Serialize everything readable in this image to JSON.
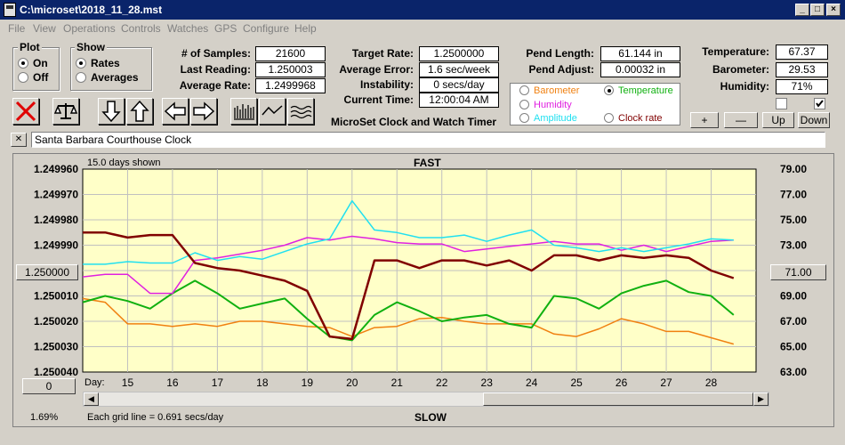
{
  "window": {
    "title": "C:\\microset\\2018_11_28.mst"
  },
  "menu": [
    "File",
    "View",
    "Operations",
    "Controls",
    "Watches",
    "GPS",
    "Configure",
    "Help"
  ],
  "plot_group": {
    "title": "Plot",
    "on": "On",
    "off": "Off",
    "selected": "On"
  },
  "show_group": {
    "title": "Show",
    "rates": "Rates",
    "averages": "Averages",
    "selected": "Rates"
  },
  "stats": {
    "samples_label": "# of Samples:",
    "samples": "21600",
    "last_label": "Last Reading:",
    "last": "1.250003",
    "avg_label": "Average Rate:",
    "avg": "1.2499968",
    "target_label": "Target Rate:",
    "target": "1.2500000",
    "err_label": "Average Error:",
    "err": "1.6 sec/week",
    "inst_label": "Instability:",
    "inst": "0 secs/day",
    "time_label": "Current Time:",
    "time": "12:00:04 AM",
    "pendlen_label": "Pend Length:",
    "pendlen": "61.144 in",
    "pendadj_label": "Pend Adjust:",
    "pendadj": "0.00032 in",
    "temp_label": "Temperature:",
    "temp": "67.37",
    "baro_label": "Barometer:",
    "baro": "29.53",
    "hum_label": "Humidity:",
    "hum": "71%"
  },
  "app_caption": "MicroSet Clock and Watch Timer",
  "legend": {
    "barometer": "Barometer",
    "temperature": "Temperature",
    "humidity": "Humidity",
    "amplitude": "Amplitude",
    "clock_rate": "Clock rate",
    "selected": "Temperature"
  },
  "adjust_buttons": {
    "plus": "+",
    "minus": "—",
    "up": "Up",
    "down": "Down"
  },
  "clock_name": "Santa Barbara Courthouse Clock",
  "close_x": "✕",
  "plot": {
    "days_shown": "15.0 days shown",
    "top_label": "FAST",
    "bottom_label": "SLOW",
    "grid_note": "Each grid line = 0.691 secs/day",
    "left_ticks": [
      "1.249960",
      "1.249970",
      "1.249980",
      "1.249990",
      "1.250000",
      "1.250010",
      "1.250020",
      "1.250030",
      "1.250040"
    ],
    "right_ticks": [
      "79.00",
      "77.00",
      "75.00",
      "73.00",
      "71.00",
      "69.00",
      "67.00",
      "65.00",
      "63.00"
    ],
    "center_left_button": "1.250000",
    "center_right_button": "71.00",
    "zero_button": "0",
    "percent": "1.69%",
    "day_label": "Day:",
    "days": [
      "15",
      "16",
      "17",
      "18",
      "19",
      "20",
      "21",
      "22",
      "23",
      "24",
      "25",
      "26",
      "27",
      "28"
    ]
  },
  "colors": {
    "plot_bg": "#ffffc8",
    "rate": "#800000",
    "temperature": "#10b010",
    "humidity": "#e020e0",
    "amplitude": "#20e0f0",
    "barometer": "#f08010"
  },
  "chart_data": {
    "type": "line",
    "x_label": "Day",
    "x": [
      14.0,
      14.5,
      15.0,
      15.5,
      16.0,
      16.5,
      17.0,
      17.5,
      18.0,
      18.5,
      19.0,
      19.5,
      20.0,
      20.5,
      21.0,
      21.5,
      22.0,
      22.5,
      23.0,
      23.5,
      24.0,
      24.5,
      25.0,
      25.5,
      26.0,
      26.5,
      27.0,
      27.5,
      28.0,
      28.5
    ],
    "left_axis": {
      "ylim": [
        1.24996,
        1.25004
      ],
      "inverted": true
    },
    "right_axis": {
      "ylim": [
        63.0,
        79.0
      ]
    },
    "series": [
      {
        "axis": "left",
        "values": [
          1.249985,
          1.249985,
          1.249987,
          1.249986,
          1.249986,
          1.249997,
          1.249999,
          1.25,
          1.250002,
          1.250004,
          1.250008,
          1.250026,
          1.250027,
          1.249996,
          1.249996,
          1.249999,
          1.249996,
          1.249996,
          1.249998,
          1.249996,
          1.25,
          1.249994,
          1.249994,
          1.249996,
          1.249994,
          1.249995,
          1.249994,
          1.249995,
          1.25,
          1.250003
        ]
      },
      {
        "axis": "right",
        "values": [
          68.5,
          69.0,
          68.6,
          68.0,
          69.2,
          70.2,
          69.2,
          68.0,
          68.4,
          68.8,
          67.2,
          65.8,
          65.5,
          67.5,
          68.5,
          67.8,
          67.0,
          67.3,
          67.5,
          66.8,
          66.5,
          69.0,
          68.8,
          68.0,
          69.2,
          69.8,
          70.2,
          69.3,
          69.0,
          67.5
        ]
      },
      {
        "axis": "right",
        "values": [
          70.5,
          70.7,
          70.7,
          69.2,
          69.2,
          71.8,
          72.0,
          72.3,
          72.6,
          73.0,
          73.6,
          73.4,
          73.7,
          73.5,
          73.2,
          73.1,
          73.1,
          72.5,
          72.7,
          72.9,
          73.1,
          73.3,
          73.1,
          73.1,
          72.6,
          73.0,
          72.5,
          72.9,
          73.3,
          73.4
        ]
      },
      {
        "axis": "right",
        "values": [
          71.5,
          71.5,
          71.7,
          71.6,
          71.6,
          72.4,
          71.8,
          72.1,
          71.9,
          72.5,
          73.1,
          73.5,
          76.5,
          74.2,
          74.0,
          73.6,
          73.6,
          73.8,
          73.3,
          73.8,
          74.2,
          73.0,
          72.8,
          72.5,
          72.8,
          72.5,
          72.8,
          73.1,
          73.5,
          73.4
        ]
      },
      {
        "axis": "right",
        "values": [
          68.8,
          68.5,
          66.8,
          66.8,
          66.6,
          66.8,
          66.6,
          67.0,
          67.0,
          66.8,
          66.6,
          66.5,
          65.8,
          66.5,
          66.6,
          67.2,
          67.3,
          67.0,
          66.8,
          66.8,
          66.8,
          66.0,
          65.8,
          66.4,
          67.2,
          66.8,
          66.2,
          66.2,
          65.7,
          65.2
        ]
      }
    ]
  }
}
